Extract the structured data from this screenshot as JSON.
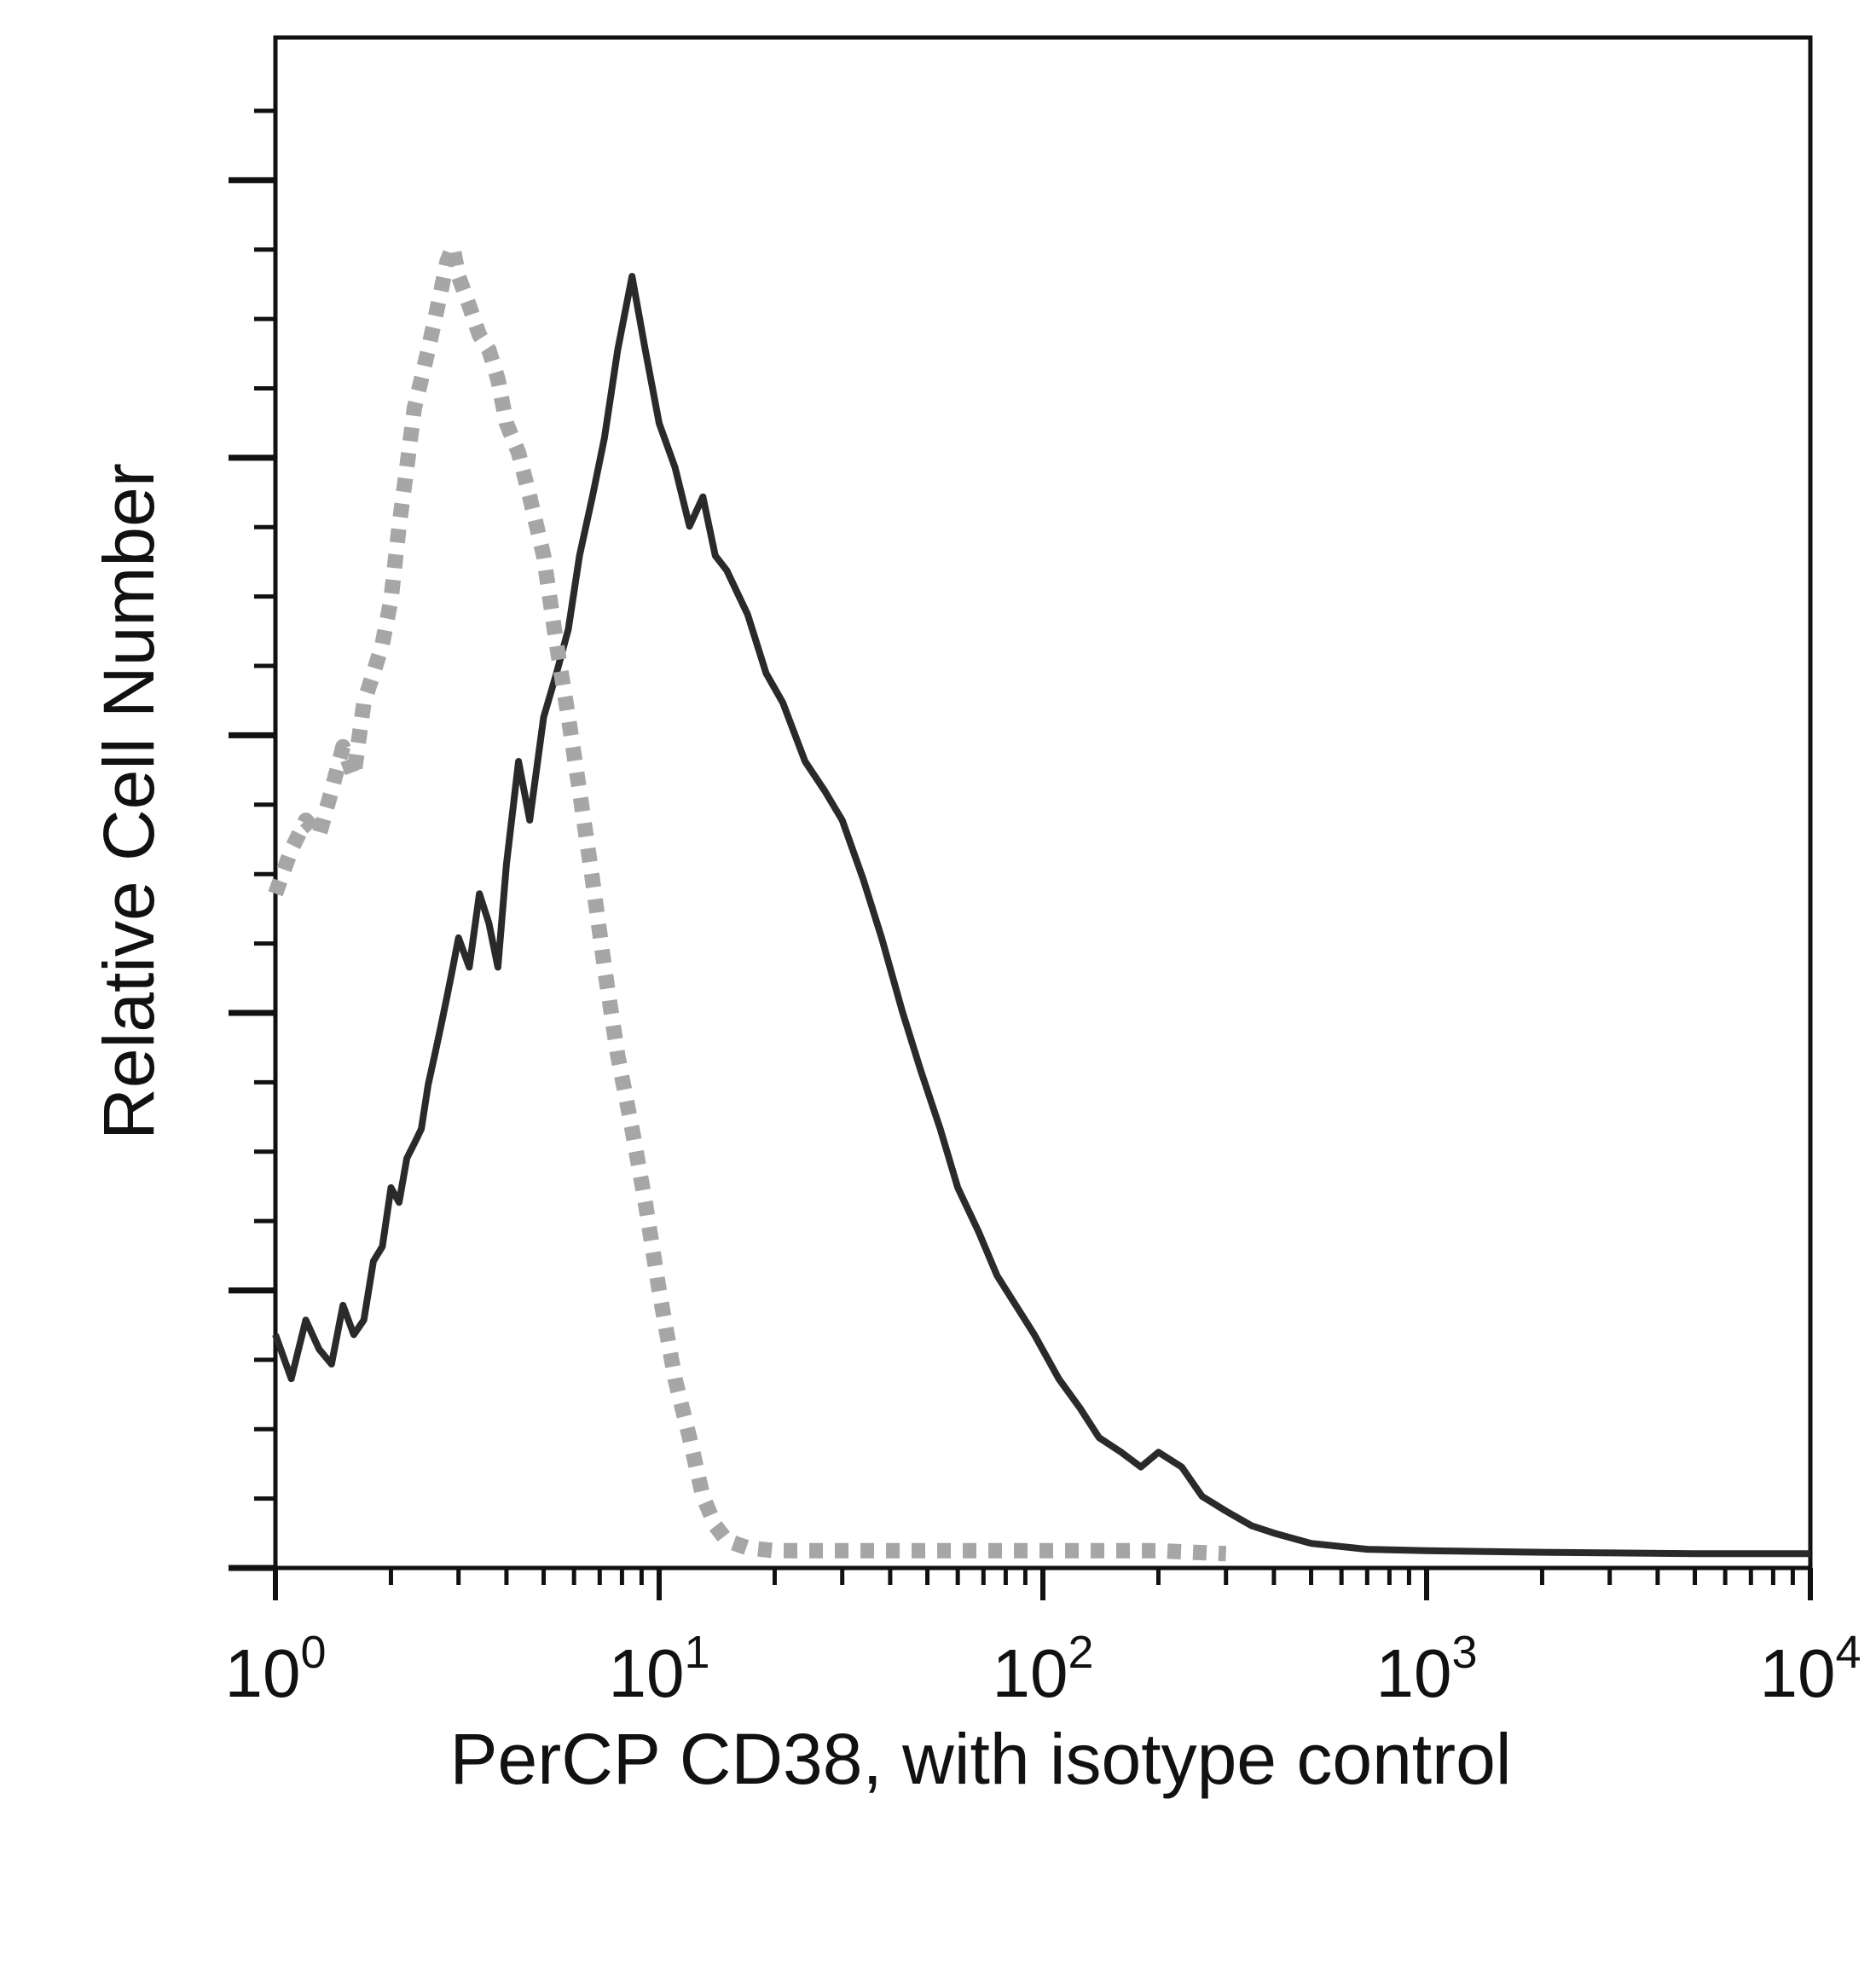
{
  "chart_data": {
    "type": "line",
    "title": "",
    "xlabel": "PerCP CD38, with isotype control",
    "ylabel": "Relative Cell Number",
    "xscale": "log",
    "xlim": [
      1,
      10000
    ],
    "ylim": [
      0,
      100
    ],
    "grid": false,
    "legend": "none",
    "x_ticks": [
      {
        "base": "10",
        "exp": "0"
      },
      {
        "base": "10",
        "exp": "1"
      },
      {
        "base": "10",
        "exp": "2"
      },
      {
        "base": "10",
        "exp": "3"
      },
      {
        "base": "10",
        "exp": "4"
      }
    ],
    "series": [
      {
        "color": "#2a2a2a",
        "style": "solid",
        "points": [
          [
            1.0,
            15
          ],
          [
            1.1,
            12
          ],
          [
            1.2,
            16
          ],
          [
            1.3,
            14
          ],
          [
            1.4,
            13
          ],
          [
            1.5,
            17
          ],
          [
            1.6,
            15
          ],
          [
            1.7,
            16
          ],
          [
            1.8,
            20
          ],
          [
            1.9,
            21
          ],
          [
            2.0,
            25
          ],
          [
            2.1,
            24
          ],
          [
            2.2,
            27
          ],
          [
            2.3,
            28
          ],
          [
            2.4,
            29
          ],
          [
            2.5,
            32
          ],
          [
            2.6,
            34
          ],
          [
            2.7,
            36
          ],
          [
            2.8,
            38
          ],
          [
            2.9,
            40
          ],
          [
            3.0,
            42
          ],
          [
            3.2,
            40
          ],
          [
            3.4,
            45
          ],
          [
            3.6,
            43
          ],
          [
            3.8,
            40
          ],
          [
            4.0,
            47
          ],
          [
            4.3,
            54
          ],
          [
            4.6,
            50
          ],
          [
            5.0,
            57
          ],
          [
            5.4,
            60
          ],
          [
            5.8,
            63
          ],
          [
            6.2,
            68
          ],
          [
            6.7,
            72
          ],
          [
            7.2,
            76
          ],
          [
            7.8,
            82
          ],
          [
            8.5,
            87
          ],
          [
            9.2,
            82
          ],
          [
            10.0,
            77
          ],
          [
            11.0,
            74
          ],
          [
            12.0,
            70
          ],
          [
            13.0,
            72
          ],
          [
            14.0,
            68
          ],
          [
            15.0,
            67
          ],
          [
            17.0,
            64
          ],
          [
            19.0,
            60
          ],
          [
            21.0,
            58
          ],
          [
            24.0,
            54
          ],
          [
            27.0,
            52
          ],
          [
            30.0,
            50
          ],
          [
            34.0,
            46
          ],
          [
            38.0,
            42
          ],
          [
            43.0,
            37
          ],
          [
            48.0,
            33
          ],
          [
            54.0,
            29
          ],
          [
            60.0,
            25
          ],
          [
            68.0,
            22
          ],
          [
            76.0,
            19
          ],
          [
            85.0,
            17
          ],
          [
            95.0,
            15
          ],
          [
            110.0,
            12
          ],
          [
            125.0,
            10
          ],
          [
            140.0,
            8
          ],
          [
            160.0,
            7
          ],
          [
            180.0,
            6
          ],
          [
            200.0,
            7
          ],
          [
            230.0,
            6
          ],
          [
            260.0,
            4
          ],
          [
            300.0,
            3
          ],
          [
            350.0,
            2
          ],
          [
            400.0,
            1.5
          ],
          [
            500.0,
            0.8
          ],
          [
            700.0,
            0.4
          ],
          [
            1000.0,
            0.3
          ],
          [
            2000.0,
            0.2
          ],
          [
            5000.0,
            0.1
          ],
          [
            10000.0,
            0.1
          ]
        ]
      },
      {
        "color": "#a6a6a6",
        "style": "dotted",
        "points": [
          [
            1.0,
            45
          ],
          [
            1.1,
            48
          ],
          [
            1.2,
            50
          ],
          [
            1.3,
            49
          ],
          [
            1.4,
            52
          ],
          [
            1.5,
            55
          ],
          [
            1.6,
            53
          ],
          [
            1.7,
            58
          ],
          [
            1.8,
            60
          ],
          [
            1.9,
            62
          ],
          [
            2.0,
            65
          ],
          [
            2.1,
            70
          ],
          [
            2.2,
            74
          ],
          [
            2.3,
            78
          ],
          [
            2.4,
            80
          ],
          [
            2.5,
            82
          ],
          [
            2.6,
            84
          ],
          [
            2.7,
            86
          ],
          [
            2.8,
            88
          ],
          [
            2.9,
            89
          ],
          [
            3.0,
            87
          ],
          [
            3.2,
            85
          ],
          [
            3.4,
            83
          ],
          [
            3.6,
            82
          ],
          [
            3.8,
            80
          ],
          [
            4.0,
            77
          ],
          [
            4.3,
            75
          ],
          [
            4.6,
            72
          ],
          [
            5.0,
            68
          ],
          [
            5.4,
            62
          ],
          [
            5.8,
            57
          ],
          [
            6.2,
            52
          ],
          [
            6.7,
            46
          ],
          [
            7.2,
            40
          ],
          [
            7.8,
            34
          ],
          [
            8.5,
            29
          ],
          [
            9.2,
            24
          ],
          [
            10.0,
            18
          ],
          [
            11.0,
            12
          ],
          [
            12.0,
            8
          ],
          [
            13.0,
            4
          ],
          [
            14.0,
            2
          ],
          [
            15.0,
            1
          ],
          [
            17.0,
            0.5
          ],
          [
            20.0,
            0.3
          ],
          [
            30.0,
            0.3
          ],
          [
            50.0,
            0.3
          ],
          [
            100.0,
            0.3
          ],
          [
            200.0,
            0.3
          ],
          [
            300.0,
            0.1
          ]
        ]
      }
    ]
  }
}
